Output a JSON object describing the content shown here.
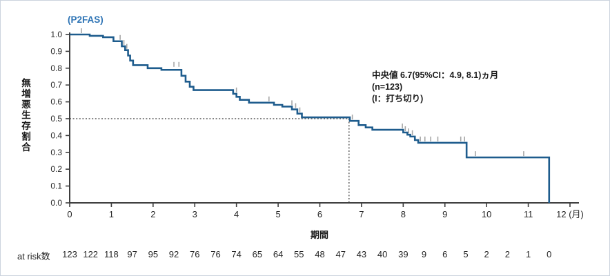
{
  "window": {
    "background": "#ffffff",
    "border_color": "#ccd3de"
  },
  "chart_data": {
    "type": "line",
    "subtype": "kaplan_meier_step",
    "title": "(P2FAS)",
    "xlabel": "期間",
    "ylabel": "無増悪生存割合",
    "x_unit": "(月)",
    "xlim": [
      0,
      12
    ],
    "ylim": [
      0.0,
      1.0
    ],
    "x_tick_values": [
      0,
      1,
      2,
      3,
      4,
      5,
      6,
      7,
      8,
      9,
      10,
      11,
      12
    ],
    "x_tick_labels": [
      "0",
      "1",
      "2",
      "3",
      "4",
      "5",
      "6",
      "7",
      "8",
      "9",
      "10",
      "11",
      "12 (月)"
    ],
    "y_tick_values": [
      0.0,
      0.1,
      0.2,
      0.3,
      0.4,
      0.5,
      0.6,
      0.7,
      0.8,
      0.9,
      1.0
    ],
    "y_tick_labels": [
      "0.0",
      "0.1",
      "0.2",
      "0.3",
      "0.4",
      "0.5",
      "0.6",
      "0.7",
      "0.8",
      "0.9",
      "1.0"
    ],
    "grid": false,
    "n": 123,
    "median_months": 6.7,
    "ci95": [
      4.9,
      8.1
    ],
    "annotation": {
      "line1": "中央値 6.7(95%CI：4.9, 8.1)ヵ月",
      "line2": "(n=123)",
      "line3": "(I：打ち切り)"
    },
    "median_crosshair": {
      "x": 6.7,
      "y": 0.5
    },
    "steps": [
      [
        0.0,
        1.0
      ],
      [
        0.48,
        0.992
      ],
      [
        0.8,
        0.984
      ],
      [
        1.05,
        0.96
      ],
      [
        1.25,
        0.93
      ],
      [
        1.33,
        0.907
      ],
      [
        1.4,
        0.875
      ],
      [
        1.45,
        0.845
      ],
      [
        1.52,
        0.818
      ],
      [
        1.87,
        0.8
      ],
      [
        2.2,
        0.79
      ],
      [
        2.68,
        0.755
      ],
      [
        2.78,
        0.72
      ],
      [
        2.88,
        0.69
      ],
      [
        2.97,
        0.67
      ],
      [
        3.92,
        0.648
      ],
      [
        4.0,
        0.63
      ],
      [
        4.08,
        0.612
      ],
      [
        4.3,
        0.595
      ],
      [
        4.9,
        0.582
      ],
      [
        5.1,
        0.572
      ],
      [
        5.33,
        0.555
      ],
      [
        5.46,
        0.53
      ],
      [
        5.57,
        0.508
      ],
      [
        6.72,
        0.487
      ],
      [
        6.93,
        0.462
      ],
      [
        7.1,
        0.448
      ],
      [
        7.26,
        0.434
      ],
      [
        8.0,
        0.418
      ],
      [
        8.1,
        0.405
      ],
      [
        8.17,
        0.394
      ],
      [
        8.28,
        0.373
      ],
      [
        8.36,
        0.357
      ],
      [
        9.52,
        0.27
      ],
      [
        11.5,
        0.0
      ]
    ],
    "censor_marks": [
      [
        0.28,
        1.0
      ],
      [
        1.21,
        0.96
      ],
      [
        1.3,
        0.93
      ],
      [
        1.37,
        0.907
      ],
      [
        2.5,
        0.8
      ],
      [
        2.62,
        0.8
      ],
      [
        4.0,
        0.648
      ],
      [
        4.78,
        0.595
      ],
      [
        5.33,
        0.572
      ],
      [
        5.42,
        0.555
      ],
      [
        5.52,
        0.53
      ],
      [
        6.78,
        0.487
      ],
      [
        7.98,
        0.434
      ],
      [
        8.05,
        0.418
      ],
      [
        8.13,
        0.405
      ],
      [
        8.22,
        0.394
      ],
      [
        8.41,
        0.357
      ],
      [
        8.52,
        0.357
      ],
      [
        8.66,
        0.357
      ],
      [
        8.83,
        0.357
      ],
      [
        9.38,
        0.357
      ],
      [
        9.47,
        0.357
      ],
      [
        9.73,
        0.27
      ],
      [
        10.89,
        0.27
      ]
    ],
    "at_risk": {
      "label": "at risk数",
      "times": [
        0,
        0.5,
        1,
        1.5,
        2,
        2.5,
        3,
        3.5,
        4,
        4.5,
        5,
        5.5,
        6,
        6.5,
        7,
        7.5,
        8,
        8.5,
        9,
        9.5,
        10,
        10.5,
        11,
        11.5
      ],
      "counts": [
        123,
        122,
        118,
        97,
        95,
        92,
        76,
        76,
        74,
        65,
        64,
        55,
        48,
        47,
        43,
        40,
        39,
        9,
        6,
        5,
        2,
        2,
        1,
        0
      ]
    },
    "colors": {
      "curve": "#1e5c8d",
      "censor": "#a6a6a6",
      "axis": "#3d3d3d",
      "median_line": "#5a5a5a",
      "title": "#2e74b5",
      "text": "#262626"
    }
  }
}
